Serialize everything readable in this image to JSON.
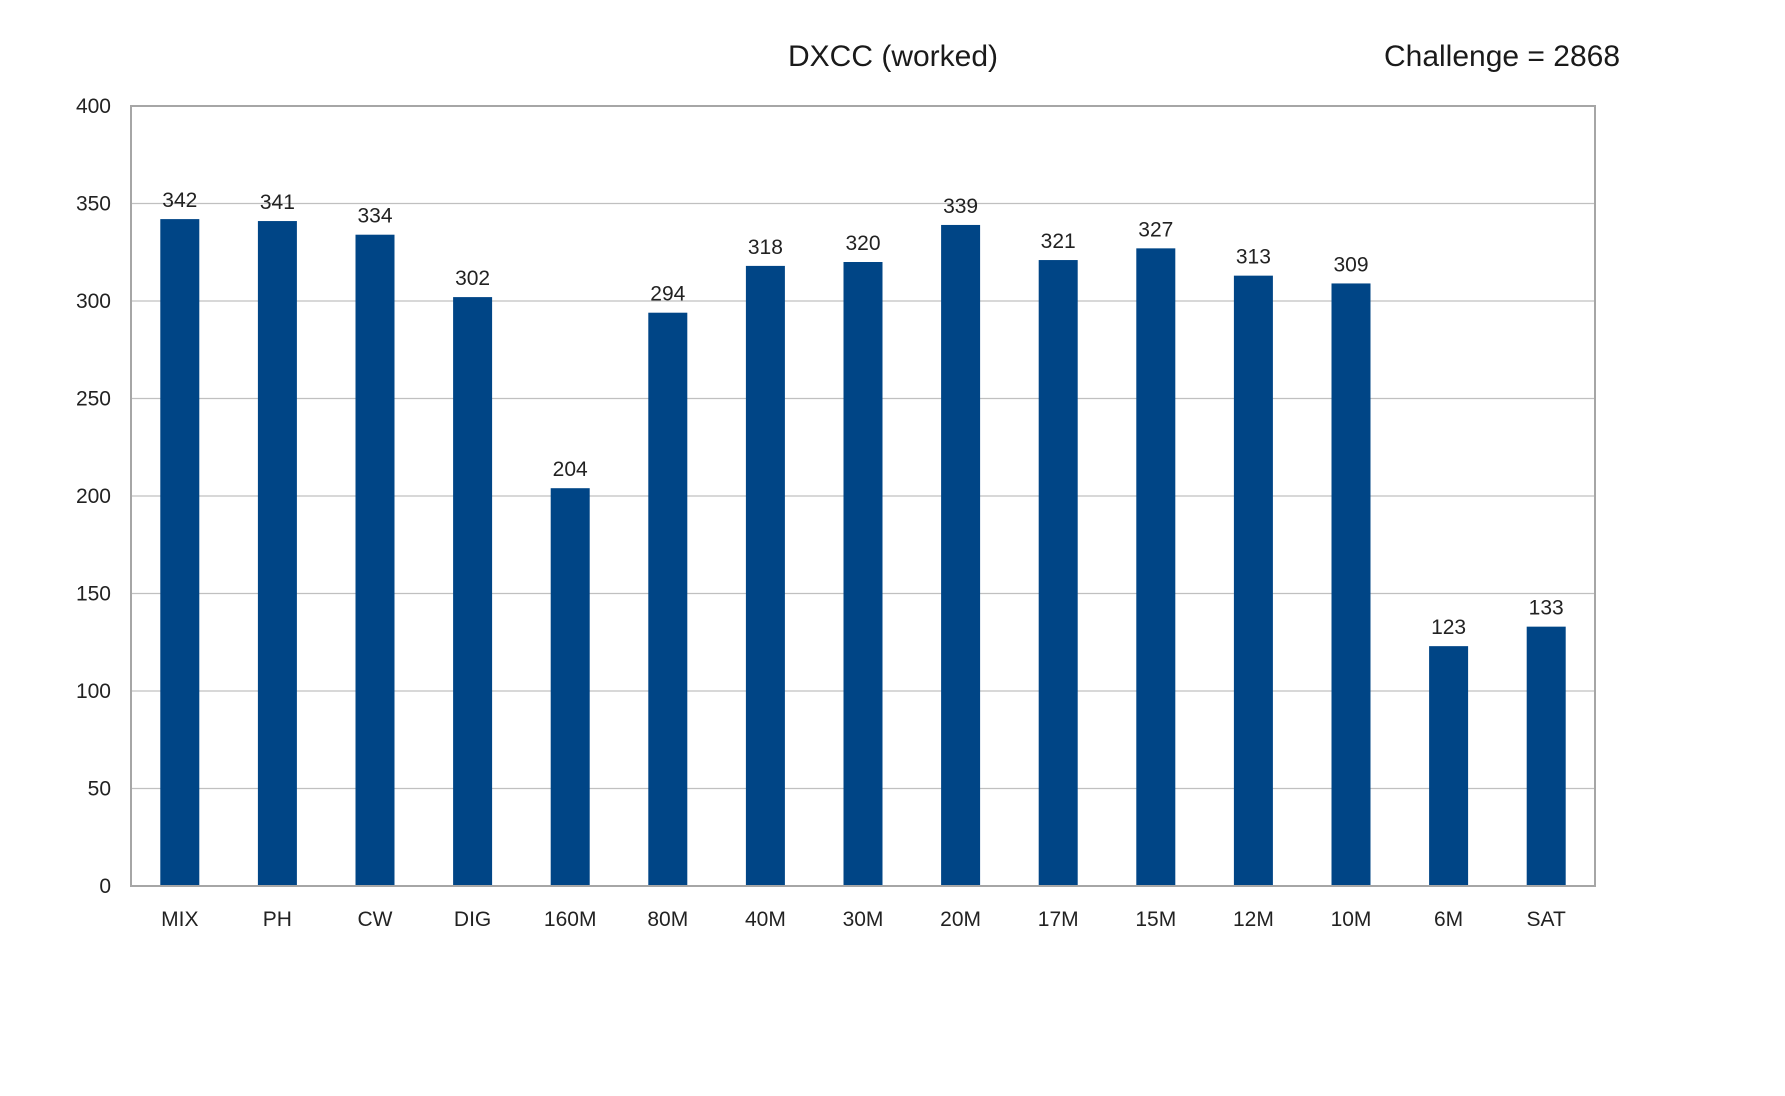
{
  "chart_data": {
    "type": "bar",
    "title": "DXCC (worked)",
    "annotation": "Challenge = 2868",
    "xlabel": "",
    "ylabel": "",
    "categories": [
      "MIX",
      "PH",
      "CW",
      "DIG",
      "160M",
      "80M",
      "40M",
      "30M",
      "20M",
      "17M",
      "15M",
      "12M",
      "10M",
      "6M",
      "SAT"
    ],
    "values": [
      342,
      341,
      334,
      302,
      204,
      294,
      318,
      320,
      339,
      321,
      327,
      313,
      309,
      123,
      133
    ],
    "ylim": [
      0,
      400
    ],
    "yticks": [
      0,
      50,
      100,
      150,
      200,
      250,
      300,
      350,
      400
    ],
    "grid": true,
    "legend": "none",
    "colors": {
      "bar": "#004586",
      "grid": "#c0c0c0",
      "axis": "#a6a6a6"
    }
  }
}
